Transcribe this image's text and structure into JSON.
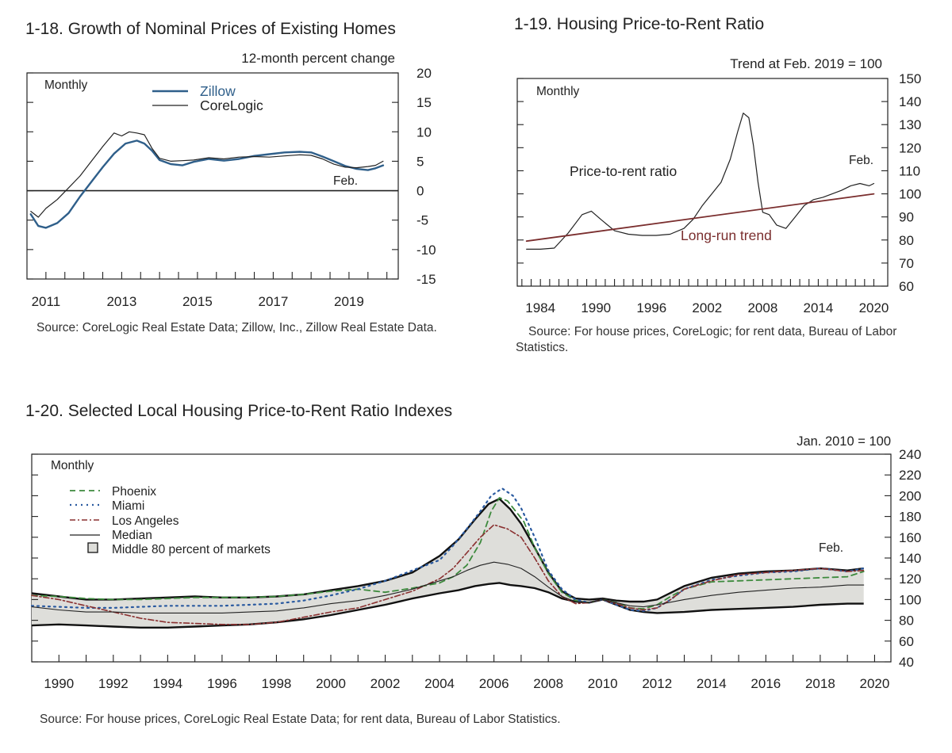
{
  "charts": {
    "c18": {
      "title": "1-18. Growth of Nominal Prices of Existing Homes",
      "unit": "12-month percent change",
      "freq": "Monthly",
      "end_label": "Feb.",
      "source": "Source: CoreLogic Real Estate Data; Zillow, Inc., Zillow Real Estate Data."
    },
    "c19": {
      "title": "1-19. Housing Price-to-Rent Ratio",
      "unit": "Trend at Feb. 2019 = 100",
      "freq": "Monthly",
      "end_label": "Feb.",
      "ratio_label": "Price-to-rent ratio",
      "trend_label": "Long-run trend",
      "source": "Source: For house prices, CoreLogic; for rent data, Bureau of Labor Statistics."
    },
    "c20": {
      "title": "1-20. Selected Local Housing Price-to-Rent Ratio Indexes",
      "unit": "Jan. 2010 = 100",
      "freq": "Monthly",
      "end_label": "Feb.",
      "legend": [
        "Phoenix",
        "Miami",
        "Los Angeles",
        "Median",
        "Middle 80 percent of markets"
      ],
      "source": "Source: For house prices, CoreLogic Real Estate Data; for rent data, Bureau of Labor Statistics."
    }
  },
  "colors": {
    "zillow": "#2f5f8a",
    "corelogic": "#222222",
    "trend": "#7a2e2e",
    "phoenix": "#3d8a3d",
    "miami": "#2a5aa0",
    "los_angeles": "#8a3030",
    "band": "#dededa"
  },
  "chart_data": [
    {
      "type": "line",
      "title": "1-18. Growth of Nominal Prices of Existing Homes",
      "ylabel": "12-month percent change",
      "ylim": [
        -15,
        20
      ],
      "yticks": [
        -15,
        -10,
        -5,
        0,
        5,
        10,
        15,
        20
      ],
      "xlim": [
        2010.5,
        2020.3
      ],
      "xticks": [
        2011,
        2013,
        2015,
        2017,
        2019
      ],
      "legend_position": "top-left",
      "series": [
        {
          "name": "Zillow",
          "color": "#2f5f8a",
          "width": 2.4,
          "x": [
            2010.6,
            2010.8,
            2011.0,
            2011.3,
            2011.6,
            2011.9,
            2012.2,
            2012.5,
            2012.8,
            2013.1,
            2013.4,
            2013.6,
            2013.8,
            2014.0,
            2014.3,
            2014.6,
            2014.9,
            2015.3,
            2015.7,
            2016.1,
            2016.5,
            2016.9,
            2017.3,
            2017.7,
            2018.0,
            2018.3,
            2018.6,
            2018.9,
            2019.2,
            2019.5,
            2019.7,
            2019.9
          ],
          "y": [
            -4.0,
            -6.0,
            -6.3,
            -5.5,
            -3.8,
            -1.0,
            1.5,
            4.0,
            6.3,
            8.0,
            8.5,
            8.0,
            6.8,
            5.2,
            4.5,
            4.3,
            4.9,
            5.4,
            5.1,
            5.4,
            5.9,
            6.2,
            6.5,
            6.6,
            6.5,
            5.8,
            5.0,
            4.2,
            3.7,
            3.5,
            3.8,
            4.3
          ]
        },
        {
          "name": "CoreLogic",
          "color": "#222222",
          "width": 1.2,
          "x": [
            2010.6,
            2010.8,
            2011.0,
            2011.3,
            2011.6,
            2011.9,
            2012.2,
            2012.5,
            2012.8,
            2013.0,
            2013.2,
            2013.4,
            2013.6,
            2013.8,
            2014.0,
            2014.3,
            2014.6,
            2014.9,
            2015.3,
            2015.7,
            2016.1,
            2016.5,
            2016.9,
            2017.3,
            2017.7,
            2018.0,
            2018.3,
            2018.6,
            2018.9,
            2019.2,
            2019.5,
            2019.7,
            2019.9
          ],
          "y": [
            -3.5,
            -4.5,
            -3.0,
            -1.5,
            0.5,
            2.5,
            5.0,
            7.5,
            9.8,
            9.3,
            10.0,
            9.8,
            9.5,
            7.2,
            5.5,
            5.0,
            5.1,
            5.2,
            5.6,
            5.4,
            5.7,
            5.8,
            5.7,
            5.9,
            6.1,
            6.0,
            5.4,
            4.5,
            4.0,
            3.9,
            4.1,
            4.3,
            5.0
          ]
        }
      ]
    },
    {
      "type": "line",
      "title": "1-19. Housing Price-to-Rent Ratio",
      "ylabel": "Trend at Feb. 2019 = 100",
      "ylim": [
        60,
        150
      ],
      "yticks": [
        60,
        70,
        80,
        90,
        100,
        110,
        120,
        130,
        140,
        150
      ],
      "xlim": [
        1981.5,
        2021.5
      ],
      "xticks": [
        1984,
        1990,
        1996,
        2002,
        2008,
        2014,
        2020
      ],
      "series": [
        {
          "name": "Price-to-rent ratio",
          "color": "#222222",
          "width": 1.2,
          "x": [
            1982.5,
            1984.0,
            1985.5,
            1987.0,
            1988.5,
            1989.5,
            1990.5,
            1992.0,
            1993.5,
            1995.0,
            1996.5,
            1998.0,
            1999.5,
            2000.5,
            2001.5,
            2002.5,
            2003.5,
            2004.5,
            2005.3,
            2005.9,
            2006.5,
            2007.0,
            2007.5,
            2008.0,
            2008.7,
            2009.5,
            2010.5,
            2011.5,
            2012.5,
            2013.5,
            2014.5,
            2015.5,
            2016.5,
            2017.5,
            2018.5,
            2019.5,
            2020.0
          ],
          "y": [
            76,
            76,
            76.5,
            83,
            91,
            92.5,
            89,
            84,
            82.5,
            82,
            82,
            82.5,
            85,
            89,
            95,
            100,
            105,
            115,
            127,
            135,
            133,
            121,
            105,
            92,
            91,
            86.5,
            85,
            90,
            95,
            97.5,
            98.5,
            100,
            101.5,
            103.5,
            104.5,
            103.5,
            104.5
          ]
        },
        {
          "name": "Long-run trend",
          "color": "#7a2e2e",
          "width": 1.8,
          "x": [
            1982.5,
            2020.0
          ],
          "y": [
            79.5,
            100
          ]
        }
      ]
    },
    {
      "type": "line",
      "title": "1-20. Selected Local Housing Price-to-Rent Ratio Indexes",
      "ylabel": "Jan. 2010 = 100",
      "ylim": [
        40,
        240
      ],
      "yticks": [
        40,
        60,
        80,
        100,
        120,
        140,
        160,
        180,
        200,
        220,
        240
      ],
      "xlim": [
        1989.0,
        2020.6
      ],
      "xticks": [
        1990,
        1992,
        1994,
        1996,
        1998,
        2000,
        2002,
        2004,
        2006,
        2008,
        2010,
        2012,
        2014,
        2016,
        2018,
        2020
      ],
      "legend_position": "top-left",
      "band": {
        "name": "Middle 80 percent of markets",
        "x": [
          1989.0,
          1990.0,
          1991.0,
          1992.0,
          1993.0,
          1994.0,
          1995.0,
          1996.0,
          1997.0,
          1998.0,
          1999.0,
          2000.0,
          2001.0,
          2002.0,
          2003.0,
          2004.0,
          2004.7,
          2005.3,
          2005.8,
          2006.2,
          2006.6,
          2007.0,
          2007.5,
          2008.0,
          2008.5,
          2009.0,
          2009.5,
          2010.0,
          2010.5,
          2011.0,
          2011.5,
          2012.0,
          2013.0,
          2014.0,
          2015.0,
          2016.0,
          2017.0,
          2018.0,
          2019.0,
          2019.6
        ],
        "lower": [
          75,
          76,
          75,
          74,
          73,
          73,
          74,
          75,
          76,
          78,
          81,
          85,
          90,
          95,
          101,
          106,
          109,
          113,
          115,
          116,
          114,
          113,
          111,
          107,
          101,
          98,
          97,
          100,
          95,
          90,
          88,
          87,
          88,
          90,
          91,
          92,
          93,
          95,
          96,
          96
        ],
        "upper": [
          106,
          103,
          100,
          100,
          101,
          102,
          103,
          102,
          102,
          103,
          105,
          109,
          113,
          118,
          126,
          142,
          158,
          177,
          192,
          197,
          187,
          173,
          150,
          126,
          108,
          101,
          100,
          101,
          99,
          98,
          98,
          100,
          113,
          121,
          125,
          127,
          128,
          130,
          128,
          130
        ]
      },
      "series": [
        {
          "name": "Phoenix",
          "color": "#3d8a3d",
          "dash": "7,5",
          "width": 1.8,
          "x": [
            1989.0,
            1990.0,
            1991.0,
            1992.0,
            1993.0,
            1994.0,
            1995.0,
            1996.0,
            1997.0,
            1998.0,
            1999.0,
            2000.0,
            2001.0,
            2002.0,
            2003.0,
            2004.0,
            2004.5,
            2005.0,
            2005.5,
            2005.9,
            2006.2,
            2006.5,
            2006.8,
            2007.1,
            2007.5,
            2008.0,
            2008.5,
            2009.0,
            2009.5,
            2010.0,
            2010.5,
            2011.0,
            2011.5,
            2012.0,
            2012.5,
            2013.0,
            2014.0,
            2015.0,
            2016.0,
            2017.0,
            2018.0,
            2019.0,
            2019.6
          ],
          "y": [
            104,
            103,
            101,
            100,
            100,
            101,
            102,
            102,
            102,
            103,
            105,
            108,
            110,
            107,
            111,
            116,
            122,
            133,
            155,
            185,
            198,
            195,
            185,
            175,
            150,
            125,
            107,
            99,
            97,
            100,
            97,
            92,
            91,
            95,
            103,
            110,
            117,
            118,
            119,
            120,
            121,
            122,
            127
          ]
        },
        {
          "name": "Miami",
          "color": "#2a5aa0",
          "dash": "2,5",
          "width": 2.2,
          "x": [
            1989.0,
            1990.0,
            1991.0,
            1992.0,
            1993.0,
            1994.0,
            1995.0,
            1996.0,
            1997.0,
            1998.0,
            1999.0,
            2000.0,
            2001.0,
            2002.0,
            2003.0,
            2004.0,
            2004.5,
            2005.0,
            2005.5,
            2005.9,
            2006.3,
            2006.7,
            2007.0,
            2007.5,
            2008.0,
            2008.5,
            2009.0,
            2009.5,
            2010.0,
            2010.5,
            2011.0,
            2011.5,
            2012.0,
            2012.5,
            2013.0,
            2014.0,
            2015.0,
            2016.0,
            2017.0,
            2018.0,
            2019.0,
            2019.6
          ],
          "y": [
            94,
            93,
            92,
            92,
            93,
            94,
            94,
            94,
            95,
            96,
            99,
            104,
            110,
            118,
            128,
            138,
            152,
            168,
            185,
            200,
            207,
            200,
            188,
            160,
            128,
            110,
            100,
            97,
            100,
            95,
            90,
            89,
            92,
            100,
            110,
            119,
            123,
            126,
            127,
            130,
            127,
            130
          ]
        },
        {
          "name": "Los Angeles",
          "color": "#8a3030",
          "dash": "7,3,2,3",
          "width": 1.6,
          "x": [
            1989.0,
            1990.0,
            1991.0,
            1992.0,
            1993.0,
            1994.0,
            1995.0,
            1996.0,
            1997.0,
            1998.0,
            1999.0,
            2000.0,
            2001.0,
            2002.0,
            2003.0,
            2004.0,
            2004.5,
            2005.0,
            2005.5,
            2006.0,
            2006.5,
            2007.0,
            2007.5,
            2008.0,
            2008.5,
            2009.0,
            2009.5,
            2010.0,
            2010.5,
            2011.0,
            2011.5,
            2012.0,
            2012.5,
            2013.0,
            2014.0,
            2015.0,
            2016.0,
            2017.0,
            2018.0,
            2019.0,
            2019.6
          ],
          "y": [
            104,
            100,
            94,
            88,
            82,
            78,
            77,
            76,
            76,
            78,
            83,
            88,
            92,
            100,
            108,
            120,
            130,
            145,
            160,
            172,
            168,
            160,
            140,
            118,
            103,
            96,
            97,
            100,
            96,
            92,
            90,
            92,
            100,
            110,
            118,
            124,
            126,
            128,
            130,
            127,
            128
          ]
        },
        {
          "name": "Median",
          "color": "#222222",
          "width": 1.1,
          "x": [
            1989.0,
            1990.0,
            1991.0,
            1992.0,
            1993.0,
            1994.0,
            1995.0,
            1996.0,
            1997.0,
            1998.0,
            1999.0,
            2000.0,
            2001.0,
            2002.0,
            2003.0,
            2004.0,
            2004.5,
            2005.0,
            2005.5,
            2006.0,
            2006.5,
            2007.0,
            2007.5,
            2008.0,
            2008.5,
            2009.0,
            2009.5,
            2010.0,
            2010.5,
            2011.0,
            2011.5,
            2012.0,
            2013.0,
            2014.0,
            2015.0,
            2016.0,
            2017.0,
            2018.0,
            2019.0,
            2019.6
          ],
          "y": [
            93,
            90,
            88,
            88,
            87,
            87,
            87,
            87,
            88,
            89,
            92,
            96,
            99,
            104,
            110,
            118,
            122,
            128,
            133,
            136,
            134,
            130,
            122,
            112,
            103,
            98,
            97,
            100,
            97,
            94,
            93,
            95,
            100,
            104,
            107,
            109,
            111,
            112,
            114,
            114
          ]
        }
      ]
    }
  ]
}
